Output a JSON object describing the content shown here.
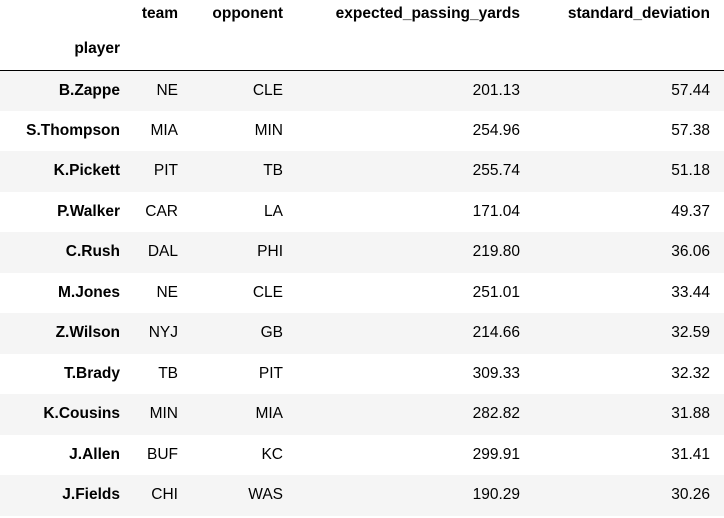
{
  "table": {
    "index_name": "player",
    "columns": {
      "team": "team",
      "opponent": "opponent",
      "expected_passing_yards": "expected_passing_yards",
      "standard_deviation": "standard_deviation"
    },
    "rows": [
      {
        "player": "B.Zappe",
        "team": "NE",
        "opponent": "CLE",
        "expected_passing_yards": "201.13",
        "standard_deviation": "57.44"
      },
      {
        "player": "S.Thompson",
        "team": "MIA",
        "opponent": "MIN",
        "expected_passing_yards": "254.96",
        "standard_deviation": "57.38"
      },
      {
        "player": "K.Pickett",
        "team": "PIT",
        "opponent": "TB",
        "expected_passing_yards": "255.74",
        "standard_deviation": "51.18"
      },
      {
        "player": "P.Walker",
        "team": "CAR",
        "opponent": "LA",
        "expected_passing_yards": "171.04",
        "standard_deviation": "49.37"
      },
      {
        "player": "C.Rush",
        "team": "DAL",
        "opponent": "PHI",
        "expected_passing_yards": "219.80",
        "standard_deviation": "36.06"
      },
      {
        "player": "M.Jones",
        "team": "NE",
        "opponent": "CLE",
        "expected_passing_yards": "251.01",
        "standard_deviation": "33.44"
      },
      {
        "player": "Z.Wilson",
        "team": "NYJ",
        "opponent": "GB",
        "expected_passing_yards": "214.66",
        "standard_deviation": "32.59"
      },
      {
        "player": "T.Brady",
        "team": "TB",
        "opponent": "PIT",
        "expected_passing_yards": "309.33",
        "standard_deviation": "32.32"
      },
      {
        "player": "K.Cousins",
        "team": "MIN",
        "opponent": "MIA",
        "expected_passing_yards": "282.82",
        "standard_deviation": "31.88"
      },
      {
        "player": "J.Allen",
        "team": "BUF",
        "opponent": "KC",
        "expected_passing_yards": "299.91",
        "standard_deviation": "31.41"
      },
      {
        "player": "J.Fields",
        "team": "CHI",
        "opponent": "WAS",
        "expected_passing_yards": "190.29",
        "standard_deviation": "30.26"
      }
    ]
  },
  "colors": {
    "stripe": "#f5f5f5",
    "header_rule": "#000000",
    "text": "#000000",
    "background": "#ffffff"
  }
}
